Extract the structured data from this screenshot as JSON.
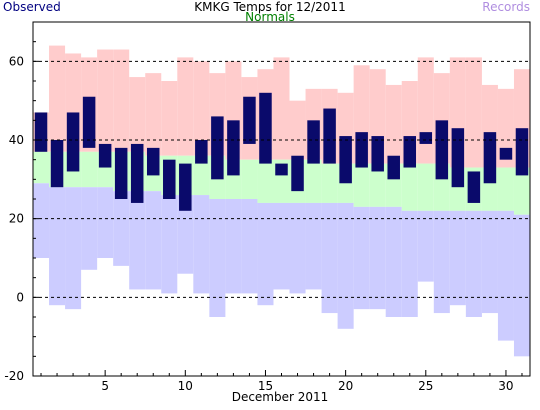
{
  "header": {
    "title": "KMKG Temps for 12/2011",
    "observed_label": "Observed",
    "normals_label": "Normals",
    "records_label": "Records"
  },
  "colors": {
    "observed": "#0a0a6b",
    "normals": "#ccffcc",
    "record_high": "#ffcccc",
    "record_low": "#ccccff",
    "observed_text": "#000080",
    "normals_text": "#008000",
    "records_text": "#b08ee0"
  },
  "chart_data": {
    "type": "bar",
    "title": "KMKG Temps for 12/2011",
    "xlabel": "December 2011",
    "ylabel": "",
    "xlim": [
      0.5,
      31.5
    ],
    "ylim": [
      -20,
      70
    ],
    "x_ticks": [
      5,
      10,
      15,
      20,
      25,
      30
    ],
    "x_tick_labels": [
      "5",
      "10",
      "15",
      "20",
      "25",
      "30"
    ],
    "y_ticks": [
      -20,
      0,
      20,
      40,
      60
    ],
    "y_tick_labels": [
      "-20",
      "0",
      "20",
      "40",
      "60"
    ],
    "gridlines_y": [
      0,
      20,
      40,
      60
    ],
    "grid": true,
    "legend": "top",
    "days": [
      1,
      2,
      3,
      4,
      5,
      6,
      7,
      8,
      9,
      10,
      11,
      12,
      13,
      14,
      15,
      16,
      17,
      18,
      19,
      20,
      21,
      22,
      23,
      24,
      25,
      26,
      27,
      28,
      29,
      30,
      31
    ],
    "series": [
      {
        "name": "Observed",
        "kind": "high",
        "values": [
          47,
          40,
          47,
          51,
          39,
          38,
          39,
          38,
          35,
          34,
          40,
          46,
          45,
          51,
          52,
          34,
          36,
          45,
          48,
          41,
          42,
          41,
          36,
          41,
          42,
          45,
          43,
          32,
          42,
          38,
          43
        ]
      },
      {
        "name": "Observed",
        "kind": "low",
        "values": [
          37,
          28,
          32,
          38,
          33,
          25,
          24,
          31,
          25,
          22,
          34,
          30,
          31,
          39,
          34,
          31,
          27,
          34,
          34,
          29,
          33,
          32,
          30,
          33,
          39,
          30,
          28,
          24,
          29,
          35,
          31
        ]
      },
      {
        "name": "Normals",
        "kind": "high",
        "values": [
          37,
          37,
          37,
          37,
          37,
          37,
          37,
          36,
          36,
          36,
          36,
          36,
          35,
          35,
          35,
          35,
          35,
          35,
          34,
          34,
          34,
          34,
          34,
          34,
          34,
          34,
          33,
          33,
          33,
          33,
          33
        ]
      },
      {
        "name": "Normals",
        "kind": "low",
        "values": [
          29,
          28,
          28,
          28,
          28,
          27,
          27,
          27,
          26,
          26,
          26,
          25,
          25,
          25,
          24,
          24,
          24,
          24,
          24,
          24,
          23,
          23,
          23,
          22,
          22,
          22,
          22,
          22,
          22,
          22,
          21
        ]
      },
      {
        "name": "Records",
        "kind": "high",
        "values": [
          47,
          64,
          62,
          61,
          63,
          63,
          56,
          57,
          55,
          61,
          60,
          57,
          60,
          56,
          58,
          61,
          50,
          53,
          53,
          52,
          59,
          58,
          54,
          55,
          61,
          57,
          61,
          61,
          54,
          53,
          58
        ]
      },
      {
        "name": "Records",
        "kind": "low",
        "values": [
          10,
          -2,
          -3,
          7,
          10,
          8,
          2,
          2,
          1,
          6,
          1,
          -5,
          1,
          1,
          -2,
          2,
          1,
          2,
          -4,
          -8,
          -3,
          -3,
          -5,
          -5,
          4,
          -4,
          -2,
          -5,
          -4,
          -11,
          -15
        ]
      }
    ]
  }
}
